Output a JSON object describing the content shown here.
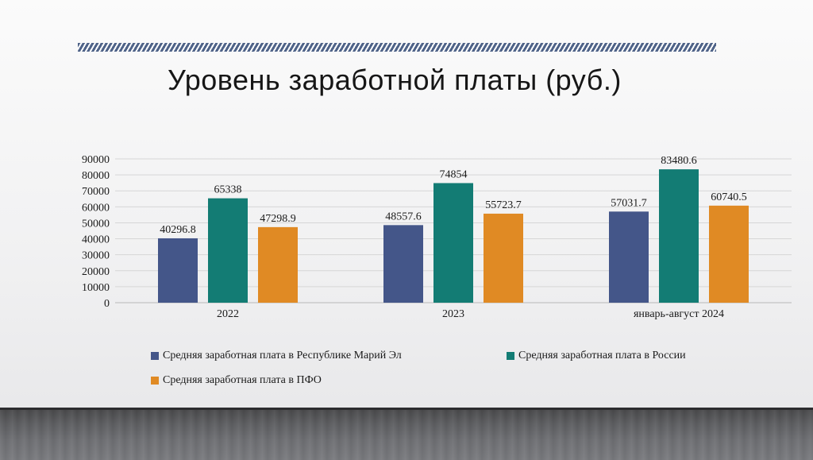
{
  "slide": {
    "title": "Уровень заработной платы (руб.)"
  },
  "colors": {
    "series": [
      "#445689",
      "#137c74",
      "#e08a24"
    ],
    "grid": "#d6d6d6",
    "axis": "#b8b8b8"
  },
  "chart_data": {
    "type": "bar",
    "title": "",
    "xlabel": "",
    "ylabel": "",
    "categories": [
      "2022",
      "2023",
      "январь-август 2024"
    ],
    "series": [
      {
        "name": "Средняя заработная плата в Республике Марий Эл",
        "values": [
          40296.8,
          48557.6,
          57031.7
        ]
      },
      {
        "name": "Средняя заработная плата в России",
        "values": [
          65338,
          74854,
          83480.6
        ]
      },
      {
        "name": "Средняя заработная плата в ПФО",
        "values": [
          47298.9,
          55723.7,
          60740.5
        ]
      }
    ],
    "yticks": [
      "0",
      "10000",
      "20000",
      "30000",
      "40000",
      "50000",
      "60000",
      "70000",
      "80000",
      "90000"
    ],
    "value_labels": [
      [
        "40296.8",
        "48557.6",
        "57031.7"
      ],
      [
        "65338",
        "74854",
        "83480.6"
      ],
      [
        "47298.9",
        "55723.7",
        "60740.5"
      ]
    ],
    "ylim": [
      0,
      90000
    ],
    "grid": true,
    "legend_position": "bottom"
  }
}
